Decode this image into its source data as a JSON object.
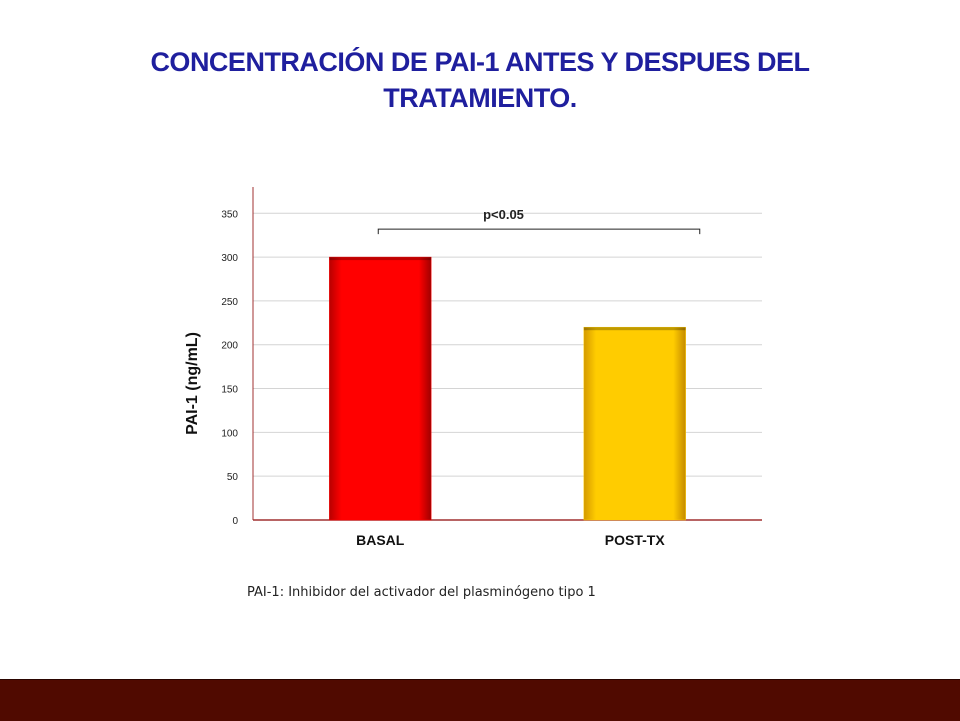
{
  "slide": {
    "title_line1": "CONCENTRACIÓN  DE  PAI-1 ANTES Y DESPUES DEL",
    "title_line2": "TRATAMIENTO.",
    "footnote": "PAI-1: Inhibidor del activador del plasminógeno tipo 1"
  },
  "chart_data": {
    "type": "bar",
    "title": "",
    "xlabel": "",
    "ylabel": "PAI-1 (ng/mL)",
    "categories": [
      "BASAL",
      "POST-TX"
    ],
    "values": [
      300,
      220
    ],
    "colors": [
      "#ff0000",
      "#ffcc00"
    ],
    "ylim": [
      0,
      380
    ],
    "yticks": [
      0,
      50,
      100,
      150,
      200,
      250,
      300,
      350
    ],
    "grid": true,
    "legend": "none",
    "annotation": {
      "text": "p<0.05",
      "between": [
        "BASAL",
        "POST-TX"
      ],
      "y_value": 332
    }
  }
}
